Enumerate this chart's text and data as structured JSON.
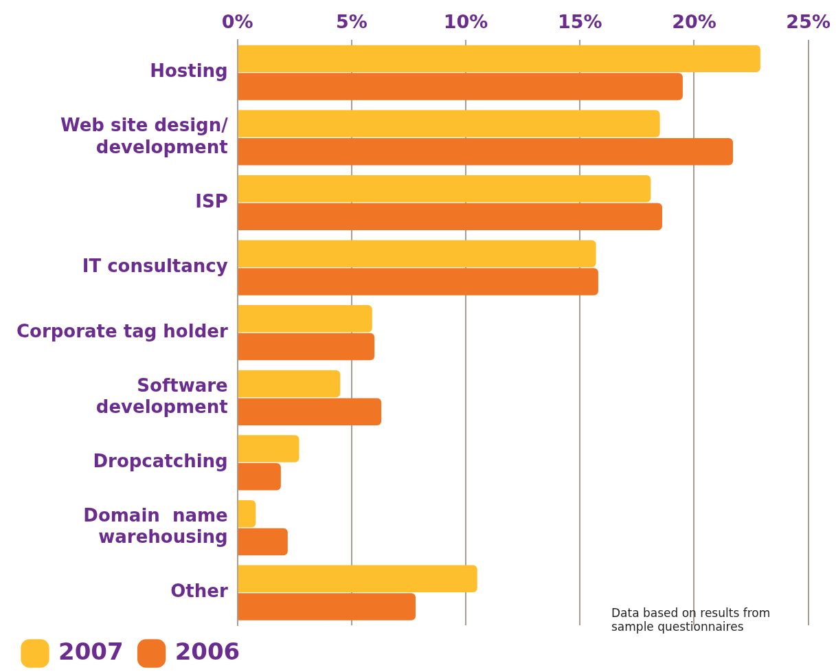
{
  "chart_data": {
    "type": "bar",
    "orientation": "horizontal",
    "categories": [
      "Hosting",
      "Web site design/\ndevelopment",
      "ISP",
      "IT consultancy",
      "Corporate tag holder",
      "Software\ndevelopment",
      "Dropcatching",
      "Domain  name\nwarehousing",
      "Other"
    ],
    "series": [
      {
        "name": "2007",
        "color": "#fdbf2d",
        "values": [
          22.9,
          18.5,
          18.1,
          15.7,
          5.9,
          4.5,
          2.7,
          0.8,
          10.5
        ]
      },
      {
        "name": "2006",
        "color": "#f07525",
        "values": [
          19.5,
          21.7,
          18.6,
          15.8,
          6.0,
          6.3,
          1.9,
          2.2,
          7.8
        ]
      }
    ],
    "xlim": [
      0,
      25
    ],
    "xticks": [
      {
        "value": 0,
        "label": "0%"
      },
      {
        "value": 5,
        "label": "5%"
      },
      {
        "value": 10,
        "label": "10%"
      },
      {
        "value": 15,
        "label": "15%"
      },
      {
        "value": 20,
        "label": "20%"
      },
      {
        "value": 25,
        "label": "25%"
      }
    ],
    "grid": "x",
    "legend": "bottom left",
    "annotations": [
      "Data based on results from\nsample questionnaires"
    ]
  }
}
